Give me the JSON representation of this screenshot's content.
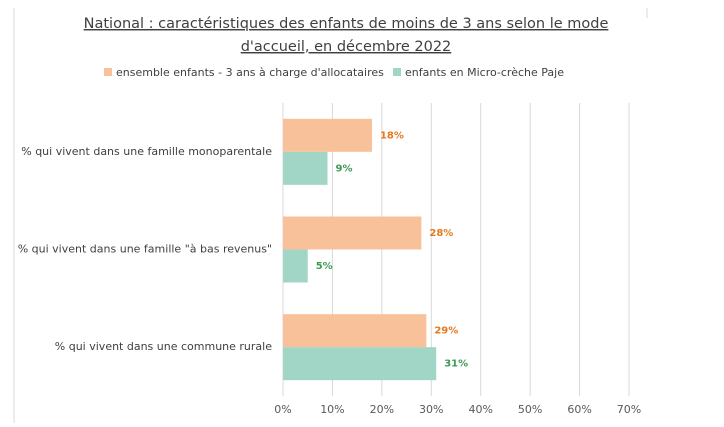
{
  "chart_data": {
    "type": "bar",
    "orientation": "horizontal",
    "title": "National : caractéristiques des enfants de moins de 3 ans selon le mode d'accueil, en décembre 2022",
    "title_lines": [
      "National : caractéristiques des enfants de moins de 3 ans selon le mode",
      "d'accueil, en décembre 2022"
    ],
    "categories": [
      "% qui vivent dans une famille monoparentale",
      "% qui vivent dans une famille \"à bas revenus\"",
      "% qui vivent dans une commune rurale"
    ],
    "series": [
      {
        "name": "ensemble enfants - 3 ans à charge d'allocataires",
        "color": "#f9c19a",
        "label_color": "#e4791f",
        "values": [
          18,
          28,
          29
        ],
        "value_labels": [
          "18%",
          "28%",
          "29%"
        ]
      },
      {
        "name": "enfants en Micro-crèche Paje",
        "color": "#a1d6c6",
        "label_color": "#3d9a55",
        "values": [
          9,
          5,
          31
        ],
        "value_labels": [
          "9%",
          "5%",
          "31%"
        ]
      }
    ],
    "xlim": [
      0,
      70
    ],
    "xticks": [
      {
        "value": 0,
        "label": "0%"
      },
      {
        "value": 10,
        "label": "10%"
      },
      {
        "value": 20,
        "label": "20%"
      },
      {
        "value": 30,
        "label": "30%"
      },
      {
        "value": 40,
        "label": "40%"
      },
      {
        "value": 50,
        "label": "50%"
      },
      {
        "value": 60,
        "label": "60%"
      },
      {
        "value": 70,
        "label": "70%"
      }
    ],
    "grid": true,
    "legend": "top"
  }
}
